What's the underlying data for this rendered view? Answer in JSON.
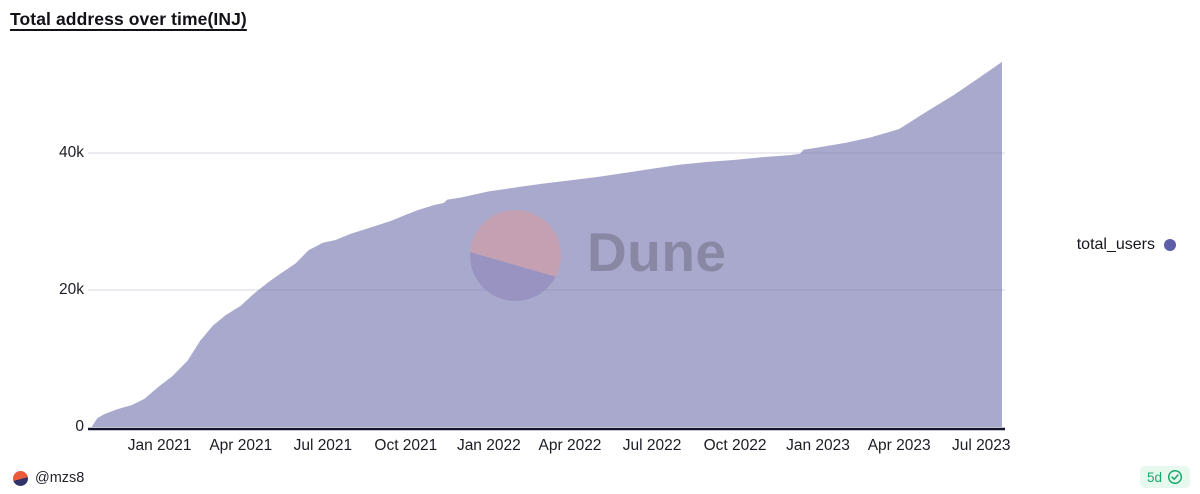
{
  "header": {
    "title": "Total address over time(INJ)"
  },
  "legend": {
    "label": "total_users",
    "dot_color": "#5d5da8"
  },
  "watermark": {
    "brand": "Dune"
  },
  "footer": {
    "author_handle": "@mzs8",
    "refresh_age": "5d",
    "verified_icon": "check-badge",
    "accent_green": "#17a868"
  },
  "chart_data": {
    "type": "area",
    "title": "Total address over time(INJ)",
    "xlabel": "",
    "ylabel": "",
    "grid": "horizontal",
    "legend_position": "right",
    "x_domain": [
      "2020-10-18",
      "2023-07-24"
    ],
    "ylim": [
      0,
      54700
    ],
    "y_ticks": [
      {
        "value": 0,
        "label": "0"
      },
      {
        "value": 20000,
        "label": "20k"
      },
      {
        "value": 40000,
        "label": "40k"
      }
    ],
    "x_ticks": [
      {
        "date": "2021-01-01",
        "label": "Jan 2021"
      },
      {
        "date": "2021-04-01",
        "label": "Apr 2021"
      },
      {
        "date": "2021-07-01",
        "label": "Jul 2021"
      },
      {
        "date": "2021-10-01",
        "label": "Oct 2021"
      },
      {
        "date": "2022-01-01",
        "label": "Jan 2022"
      },
      {
        "date": "2022-04-01",
        "label": "Apr 2022"
      },
      {
        "date": "2022-07-01",
        "label": "Jul 2022"
      },
      {
        "date": "2022-10-01",
        "label": "Oct 2022"
      },
      {
        "date": "2023-01-01",
        "label": "Jan 2023"
      },
      {
        "date": "2023-04-01",
        "label": "Apr 2023"
      },
      {
        "date": "2023-07-01",
        "label": "Jul 2023"
      }
    ],
    "series": [
      {
        "name": "total_users",
        "fill_color": "#a9a9ce",
        "points": [
          [
            "2020-10-18",
            100
          ],
          [
            "2020-10-24",
            1300
          ],
          [
            "2020-11-01",
            1900
          ],
          [
            "2020-11-15",
            2600
          ],
          [
            "2020-12-01",
            3200
          ],
          [
            "2020-12-15",
            4100
          ],
          [
            "2021-01-01",
            6000
          ],
          [
            "2021-01-15",
            7400
          ],
          [
            "2021-02-01",
            9700
          ],
          [
            "2021-02-15",
            12600
          ],
          [
            "2021-03-01",
            14800
          ],
          [
            "2021-03-15",
            16300
          ],
          [
            "2021-04-01",
            17700
          ],
          [
            "2021-04-15",
            19400
          ],
          [
            "2021-05-01",
            21100
          ],
          [
            "2021-05-15",
            22400
          ],
          [
            "2021-06-01",
            23900
          ],
          [
            "2021-06-15",
            25800
          ],
          [
            "2021-07-01",
            26900
          ],
          [
            "2021-07-15",
            27300
          ],
          [
            "2021-08-01",
            28200
          ],
          [
            "2021-08-15",
            28800
          ],
          [
            "2021-09-01",
            29500
          ],
          [
            "2021-09-15",
            30100
          ],
          [
            "2021-10-01",
            31000
          ],
          [
            "2021-10-15",
            31700
          ],
          [
            "2021-11-01",
            32400
          ],
          [
            "2021-11-12",
            32700
          ],
          [
            "2021-11-16",
            33200
          ],
          [
            "2021-12-01",
            33500
          ],
          [
            "2021-12-15",
            33900
          ],
          [
            "2022-01-01",
            34400
          ],
          [
            "2022-02-01",
            35000
          ],
          [
            "2022-03-01",
            35500
          ],
          [
            "2022-04-01",
            36000
          ],
          [
            "2022-05-01",
            36500
          ],
          [
            "2022-06-01",
            37100
          ],
          [
            "2022-07-01",
            37700
          ],
          [
            "2022-08-01",
            38300
          ],
          [
            "2022-09-01",
            38700
          ],
          [
            "2022-10-01",
            39000
          ],
          [
            "2022-11-01",
            39400
          ],
          [
            "2022-12-01",
            39700
          ],
          [
            "2022-12-12",
            39900
          ],
          [
            "2022-12-16",
            40500
          ],
          [
            "2023-01-01",
            40800
          ],
          [
            "2023-02-01",
            41500
          ],
          [
            "2023-03-01",
            42300
          ],
          [
            "2023-04-01",
            43500
          ],
          [
            "2023-05-01",
            46000
          ],
          [
            "2023-06-01",
            48500
          ],
          [
            "2023-07-01",
            51200
          ],
          [
            "2023-07-24",
            53300
          ]
        ]
      }
    ],
    "style": {
      "axis_line_color": "#15152e",
      "gridline_color": "rgba(120,120,150,0.28)",
      "tick_text_color": "#1c1c24"
    }
  }
}
